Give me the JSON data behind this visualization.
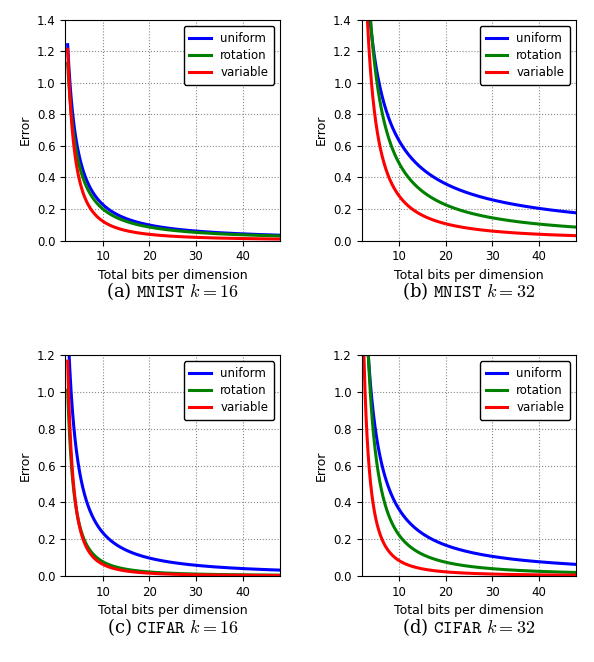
{
  "panels": [
    {
      "title_pre": "(a) ",
      "title_mono": "MNIST",
      "title_post": " $k = 16$",
      "ylim": [
        0,
        1.4
      ],
      "yticks": [
        0,
        0.2,
        0.4,
        0.6,
        0.8,
        1.0,
        1.2,
        1.4
      ],
      "curves": {
        "uniform": {
          "color": "#0000ff",
          "a": 3.8,
          "b": 1.22
        },
        "rotation": {
          "color": "#008000",
          "a": 3.5,
          "b": 1.24
        },
        "variable": {
          "color": "#ff0000",
          "a": 5.5,
          "b": 1.65
        }
      }
    },
    {
      "title_pre": "(b) ",
      "title_mono": "MNIST",
      "title_post": " $k = 32$",
      "ylim": [
        0,
        1.4
      ],
      "yticks": [
        0,
        0.2,
        0.4,
        0.6,
        0.8,
        1.0,
        1.2,
        1.4
      ],
      "curves": {
        "uniform": {
          "color": "#0000ff",
          "a": 4.2,
          "b": 0.82
        },
        "rotation": {
          "color": "#008000",
          "a": 6.5,
          "b": 1.12
        },
        "variable": {
          "color": "#ff0000",
          "a": 7.5,
          "b": 1.42
        }
      }
    },
    {
      "title_pre": "(c) ",
      "title_mono": "CIFAR",
      "title_post": " $k = 16$",
      "ylim": [
        0,
        1.2
      ],
      "yticks": [
        0,
        0.2,
        0.4,
        0.6,
        0.8,
        1.0,
        1.2
      ],
      "curves": {
        "uniform": {
          "color": "#0000ff",
          "a": 4.5,
          "b": 1.28
        },
        "rotation": {
          "color": "#008000",
          "a": 5.5,
          "b": 1.85
        },
        "variable": {
          "color": "#ff0000",
          "a": 8.0,
          "b": 2.1
        }
      }
    },
    {
      "title_pre": "(d) ",
      "title_mono": "CIFAR",
      "title_post": " $k = 32$",
      "ylim": [
        0,
        1.2
      ],
      "yticks": [
        0,
        0.2,
        0.4,
        0.6,
        0.8,
        1.0,
        1.2
      ],
      "curves": {
        "uniform": {
          "color": "#0000ff",
          "a": 4.8,
          "b": 1.12
        },
        "rotation": {
          "color": "#008000",
          "a": 8.5,
          "b": 1.58
        },
        "variable": {
          "color": "#ff0000",
          "a": 7.0,
          "b": 1.92
        }
      }
    }
  ],
  "xlabel": "Total bits per dimension",
  "ylabel": "Error",
  "xlim": [
    2,
    48
  ],
  "xticks": [
    10,
    20,
    30,
    40
  ],
  "legend_labels": [
    "uniform",
    "rotation",
    "variable"
  ],
  "legend_colors": [
    "#0000ff",
    "#008000",
    "#ff0000"
  ],
  "linewidth": 2.2,
  "bg_color": "#ffffff",
  "grid_color": "#888888",
  "caption_fontsize": 13
}
